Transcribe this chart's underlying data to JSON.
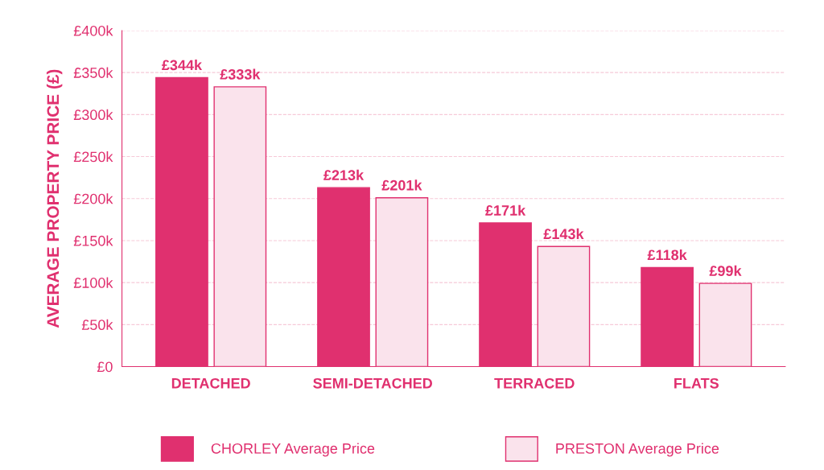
{
  "chart_data": {
    "type": "bar",
    "ylabel": "AVERAGE PROPERTY PRICE (£)",
    "categories": [
      "DETACHED",
      "SEMI-DETACHED",
      "TERRACED",
      "FLATS"
    ],
    "series": [
      {
        "name": "CHORLEY Average Price",
        "color": "#e0306f",
        "values": [
          344,
          213,
          171,
          118
        ],
        "value_labels": [
          "£344k",
          "£213k",
          "£171k",
          "£118k"
        ]
      },
      {
        "name": "PRESTON Average Price",
        "color": "#fae3ec",
        "values": [
          333,
          201,
          143,
          99
        ],
        "value_labels": [
          "£333k",
          "£201k",
          "£143k",
          "£99k"
        ]
      }
    ],
    "ylim": [
      0,
      400
    ],
    "yticks": [
      {
        "value": 0,
        "label": "£0"
      },
      {
        "value": 50,
        "label": "£50k"
      },
      {
        "value": 100,
        "label": "£100k"
      },
      {
        "value": 150,
        "label": "£150k"
      },
      {
        "value": 200,
        "label": "£200k"
      },
      {
        "value": 250,
        "label": "£250k"
      },
      {
        "value": 300,
        "label": "£300k"
      },
      {
        "value": 350,
        "label": "£350k"
      },
      {
        "value": 400,
        "label": "£400k"
      }
    ],
    "grid": "y",
    "legend": "bottom"
  }
}
